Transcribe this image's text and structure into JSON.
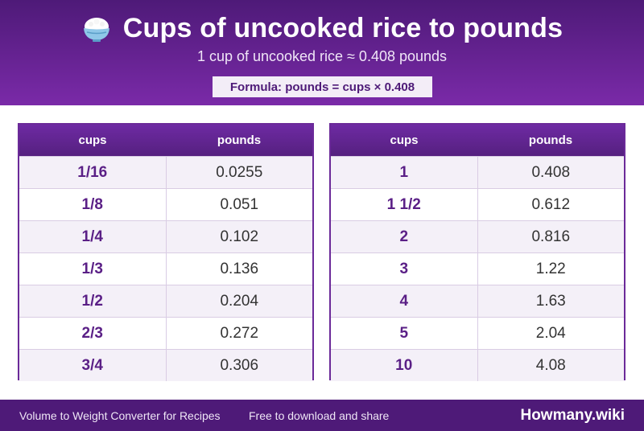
{
  "header": {
    "icon": "rice-bowl-icon",
    "title": "Cups of uncooked rice to pounds",
    "subtitle": "1 cup of uncooked rice ≈ 0.408 pounds",
    "formula": "Formula: pounds = cups × 0.408"
  },
  "tables": [
    {
      "headers": [
        "cups",
        "pounds"
      ],
      "rows": [
        [
          "1/16",
          "0.0255"
        ],
        [
          "1/8",
          "0.051"
        ],
        [
          "1/4",
          "0.102"
        ],
        [
          "1/3",
          "0.136"
        ],
        [
          "1/2",
          "0.204"
        ],
        [
          "2/3",
          "0.272"
        ],
        [
          "3/4",
          "0.306"
        ]
      ]
    },
    {
      "headers": [
        "cups",
        "pounds"
      ],
      "rows": [
        [
          "1",
          "0.408"
        ],
        [
          "1 1/2",
          "0.612"
        ],
        [
          "2",
          "0.816"
        ],
        [
          "3",
          "1.22"
        ],
        [
          "4",
          "1.63"
        ],
        [
          "5",
          "2.04"
        ],
        [
          "10",
          "4.08"
        ]
      ]
    }
  ],
  "footer": {
    "left": "Volume to Weight Converter for Recipes",
    "middle": "Free to download and share",
    "brand": "Howmany.wiki"
  },
  "colors": {
    "brand_purple": "#4e1a78",
    "header_gradient_end": "#7a2aa8",
    "row_stripe": "#f4f0f8"
  }
}
